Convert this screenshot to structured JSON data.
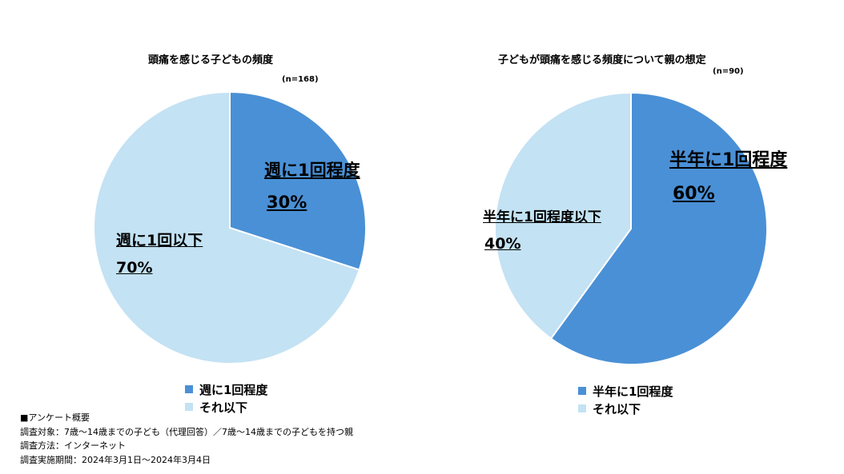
{
  "colors": {
    "dark": "#4A90D6",
    "light": "#C3E2F3",
    "stroke": "#ffffff"
  },
  "chart_data": [
    {
      "type": "pie",
      "title": "頭痛を感じる子どもの頻度",
      "n_label": "(n=168)",
      "slices": [
        {
          "label": "週に1回程度",
          "value": 30,
          "pct_label": "30%"
        },
        {
          "label": "週に1回以下",
          "value": 70,
          "pct_label": "70%"
        }
      ],
      "legend": [
        "週に1回程度",
        "それ以下"
      ]
    },
    {
      "type": "pie",
      "title": "子どもが頭痛を感じる頻度について親の想定",
      "n_label": "(n=90)",
      "slices": [
        {
          "label": "半年に1回程度",
          "value": 60,
          "pct_label": "60%"
        },
        {
          "label": "半年に1回程度以下",
          "value": 40,
          "pct_label": "40%"
        }
      ],
      "legend": [
        "半年に1回程度",
        "それ以下"
      ]
    }
  ],
  "notes": {
    "heading": "■アンケート概要",
    "target": "調査対象：7歳～14歳までの子ども（代理回答）／7歳～14歳までの子どもを持つ親",
    "method": "調査方法：インターネット",
    "period": "調査実施期間：2024年3月1日～2024年3月4日"
  }
}
